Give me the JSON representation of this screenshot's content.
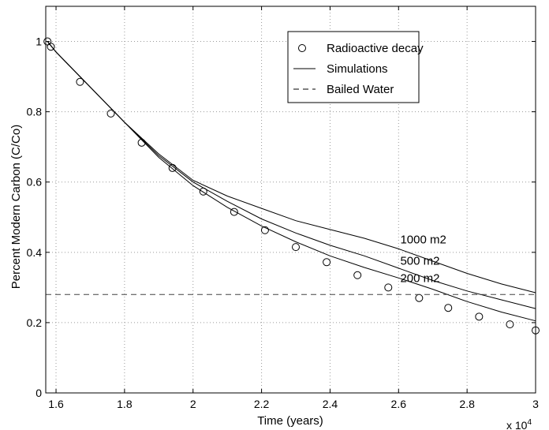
{
  "chart_data": {
    "type": "line",
    "xlabel": "Time (years)",
    "ylabel": "Percent Modern Carbon (C/Co)",
    "x_exponent_label": "x 10",
    "x_exponent": "4",
    "xlim": [
      1.57,
      3.0
    ],
    "ylim": [
      0,
      1.1
    ],
    "xticks": [
      1.6,
      1.8,
      2,
      2.2,
      2.4,
      2.6,
      2.8,
      3
    ],
    "xtick_labels": [
      "1.6",
      "1.8",
      "2",
      "2.2",
      "2.4",
      "2.6",
      "2.8",
      "3"
    ],
    "yticks": [
      0,
      0.2,
      0.4,
      0.6,
      0.8,
      1
    ],
    "ytick_labels": [
      "0",
      "0.2",
      "0.4",
      "0.6",
      "0.8",
      "1"
    ],
    "grid": true,
    "legend_position": "top-right",
    "legend": [
      {
        "label": "Radioactive decay",
        "marker": "circle"
      },
      {
        "label": "Simulations",
        "line": "solid"
      },
      {
        "label": "Bailed Water",
        "line": "dashed"
      }
    ],
    "series": [
      {
        "name": "Radioactive decay",
        "style": "markers",
        "x": [
          1.575,
          1.585,
          1.67,
          1.76,
          1.85,
          1.94,
          2.03,
          2.12,
          2.21,
          2.3,
          2.39,
          2.48,
          2.57,
          2.66,
          2.745,
          2.835,
          2.925,
          3.0
        ],
        "y": [
          1.0,
          0.985,
          0.885,
          0.795,
          0.712,
          0.64,
          0.573,
          0.515,
          0.463,
          0.415,
          0.372,
          0.335,
          0.3,
          0.27,
          0.242,
          0.217,
          0.195,
          0.178
        ]
      },
      {
        "name": "Simulations",
        "annotation": "1000 m2",
        "style": "solid",
        "x": [
          1.575,
          1.6,
          1.7,
          1.8,
          1.9,
          2.0,
          2.1,
          2.2,
          2.3,
          2.4,
          2.5,
          2.6,
          2.7,
          2.8,
          2.9,
          3.0
        ],
        "y": [
          1.0,
          0.97,
          0.87,
          0.77,
          0.68,
          0.605,
          0.56,
          0.525,
          0.49,
          0.465,
          0.44,
          0.41,
          0.375,
          0.34,
          0.31,
          0.285
        ]
      },
      {
        "name": "Simulations",
        "annotation": "500 m2",
        "style": "solid",
        "x": [
          1.575,
          1.6,
          1.7,
          1.8,
          1.9,
          2.0,
          2.1,
          2.2,
          2.3,
          2.4,
          2.5,
          2.6,
          2.7,
          2.8,
          2.9,
          3.0
        ],
        "y": [
          1.0,
          0.97,
          0.87,
          0.77,
          0.675,
          0.6,
          0.545,
          0.495,
          0.455,
          0.42,
          0.39,
          0.355,
          0.32,
          0.29,
          0.265,
          0.24
        ]
      },
      {
        "name": "Simulations",
        "annotation": "200 m2",
        "style": "solid",
        "x": [
          1.575,
          1.6,
          1.7,
          1.8,
          1.9,
          2.0,
          2.1,
          2.2,
          2.3,
          2.4,
          2.5,
          2.6,
          2.7,
          2.8,
          2.9,
          3.0
        ],
        "y": [
          1.0,
          0.97,
          0.87,
          0.77,
          0.67,
          0.59,
          0.528,
          0.475,
          0.43,
          0.39,
          0.357,
          0.327,
          0.295,
          0.26,
          0.23,
          0.205
        ]
      },
      {
        "name": "Bailed Water",
        "style": "dashed",
        "x": [
          1.57,
          3.0
        ],
        "y": [
          0.28,
          0.28
        ]
      }
    ],
    "annotations": [
      {
        "text": "1000 m2",
        "x": 2.605,
        "y": 0.425
      },
      {
        "text": "500 m2",
        "x": 2.605,
        "y": 0.365
      },
      {
        "text": "200 m2",
        "x": 2.605,
        "y": 0.315
      }
    ]
  }
}
